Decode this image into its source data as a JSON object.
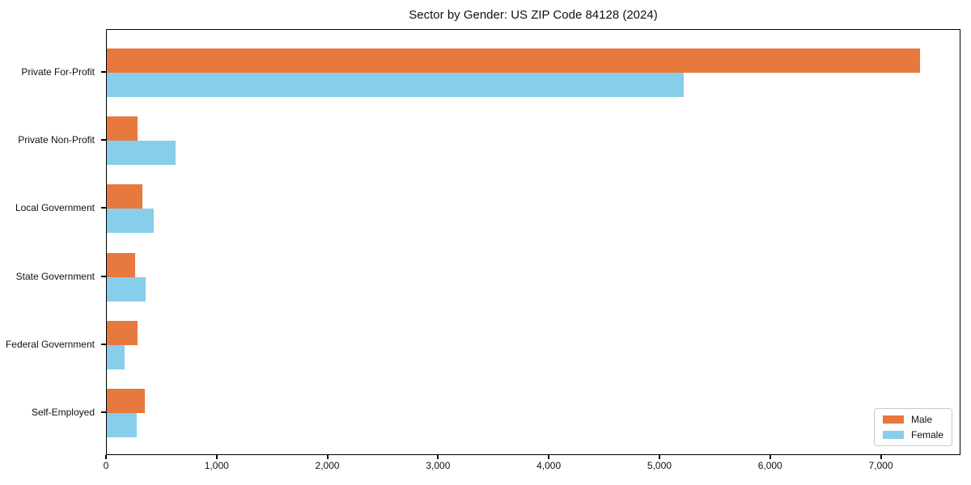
{
  "chart_data": {
    "type": "bar",
    "orientation": "horizontal",
    "title": "Sector by Gender: US ZIP Code 84128 (2024)",
    "categories": [
      "Private For-Profit",
      "Private Non-Profit",
      "Local Government",
      "State Government",
      "Federal Government",
      "Self-Employed"
    ],
    "series": [
      {
        "name": "Male",
        "color": "#E8793E",
        "values": [
          7350,
          280,
          325,
          255,
          275,
          345
        ]
      },
      {
        "name": "Female",
        "color": "#87CEEB",
        "values": [
          5210,
          620,
          425,
          350,
          160,
          270
        ]
      }
    ],
    "xlabel": "",
    "ylabel": "",
    "xlim": [
      0,
      7720
    ],
    "x_ticks": [
      {
        "value": 0,
        "label": "0"
      },
      {
        "value": 1000,
        "label": "1,000"
      },
      {
        "value": 2000,
        "label": "2,000"
      },
      {
        "value": 3000,
        "label": "3,000"
      },
      {
        "value": 4000,
        "label": "4,000"
      },
      {
        "value": 5000,
        "label": "5,000"
      },
      {
        "value": 6000,
        "label": "6,000"
      },
      {
        "value": 7000,
        "label": "7,000"
      }
    ],
    "grid": false,
    "legend_position": "lower right",
    "axis_color": "#000000",
    "text_color": "#111111",
    "background_color": "#ffffff"
  }
}
